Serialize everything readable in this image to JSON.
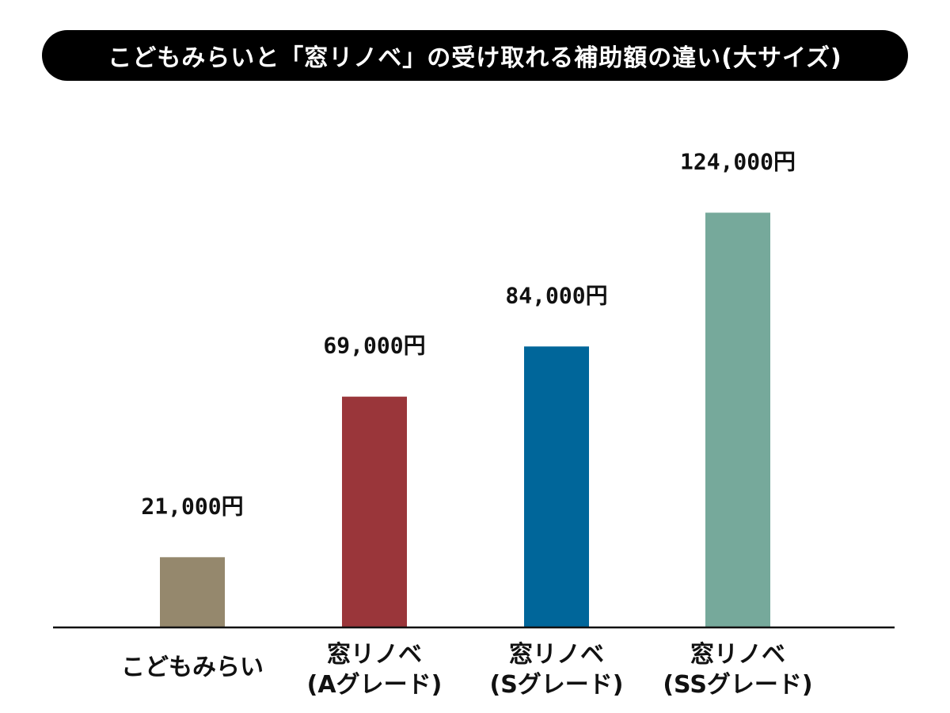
{
  "header": {
    "title": "こどもみらいと「窓リノベ」の受け取れる補助額の違い(大サイズ)"
  },
  "chart_data": {
    "type": "bar",
    "title": "こどもみらいと「窓リノベ」の受け取れる補助額の違い(大サイズ)",
    "xlabel": "",
    "ylabel": "",
    "ylim": [
      0,
      135000
    ],
    "grid": false,
    "legend": "none",
    "categories": [
      [
        "こどもみらい"
      ],
      [
        "窓リノベ",
        "(Aグレード)"
      ],
      [
        "窓リノベ",
        "(Sグレード)"
      ],
      [
        "窓リノベ",
        "(SSグレード)"
      ]
    ],
    "values": [
      21000,
      69000,
      84000,
      124000
    ],
    "value_labels": [
      "21,000円",
      "69,000円",
      "84,000円",
      "124,000円"
    ],
    "colors": [
      "#95886d",
      "#9a363a",
      "#00669a",
      "#76a99b"
    ]
  }
}
